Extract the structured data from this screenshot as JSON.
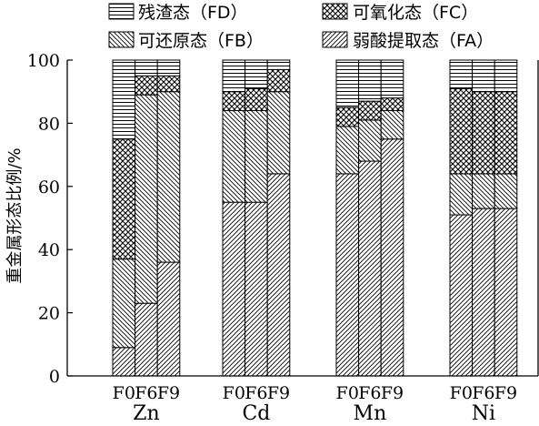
{
  "legend": [
    {
      "key": "FD",
      "label": "残渣态（FD）",
      "pattern": "horizontal"
    },
    {
      "key": "FC",
      "label": "可氧化态（FC）",
      "pattern": "crosshatch"
    },
    {
      "key": "FB",
      "label": "可还原态（FB）",
      "pattern": "backslash"
    },
    {
      "key": "FA",
      "label": "弱酸提取态（FA）",
      "pattern": "slash"
    }
  ],
  "chart_data": {
    "type": "bar",
    "stacked": true,
    "ylabel": "重金属形态比例/%",
    "ylim": [
      0,
      100
    ],
    "yticks": [
      0,
      20,
      40,
      60,
      80,
      100
    ],
    "groups": [
      "Zn",
      "Cd",
      "Mn",
      "Ni"
    ],
    "categories": [
      "F0",
      "F6",
      "F9"
    ],
    "grid": false,
    "legend_position": "top",
    "series_order_bottom_to_top": [
      "FA",
      "FB",
      "FC",
      "FD"
    ],
    "bars": [
      {
        "group": "Zn",
        "category": "F0",
        "FA": 9,
        "FB": 28,
        "FC": 38,
        "FD": 25
      },
      {
        "group": "Zn",
        "category": "F6",
        "FA": 23,
        "FB": 66,
        "FC": 6,
        "FD": 5
      },
      {
        "group": "Zn",
        "category": "F9",
        "FA": 36,
        "FB": 54,
        "FC": 5,
        "FD": 5
      },
      {
        "group": "Cd",
        "category": "F0",
        "FA": 55,
        "FB": 29,
        "FC": 6,
        "FD": 10
      },
      {
        "group": "Cd",
        "category": "F6",
        "FA": 55,
        "FB": 29,
        "FC": 7,
        "FD": 9
      },
      {
        "group": "Cd",
        "category": "F9",
        "FA": 64,
        "FB": 26,
        "FC": 7,
        "FD": 3
      },
      {
        "group": "Mn",
        "category": "F0",
        "FA": 64,
        "FB": 15,
        "FC": 6,
        "FD": 15
      },
      {
        "group": "Mn",
        "category": "F6",
        "FA": 68,
        "FB": 13,
        "FC": 6,
        "FD": 13
      },
      {
        "group": "Mn",
        "category": "F9",
        "FA": 75,
        "FB": 9,
        "FC": 4,
        "FD": 12
      },
      {
        "group": "Ni",
        "category": "F0",
        "FA": 51,
        "FB": 13,
        "FC": 27,
        "FD": 9
      },
      {
        "group": "Ni",
        "category": "F6",
        "FA": 53,
        "FB": 11,
        "FC": 26,
        "FD": 10
      },
      {
        "group": "Ni",
        "category": "F9",
        "FA": 53,
        "FB": 11,
        "FC": 26,
        "FD": 10
      }
    ]
  }
}
